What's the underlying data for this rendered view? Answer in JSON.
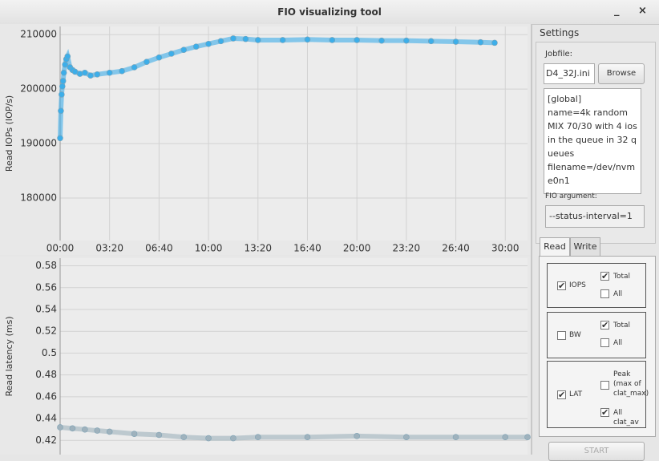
{
  "window": {
    "title": "FIO visualizing tool",
    "controls": [
      "_",
      "×"
    ]
  },
  "chart_data": [
    {
      "type": "line",
      "ylabel": "Read IOPs (IOP/s)",
      "x": [
        0,
        3,
        6,
        9,
        12,
        15,
        20,
        25,
        30,
        40,
        50,
        60,
        80,
        100,
        123,
        150,
        200,
        250,
        300,
        350,
        400,
        450,
        500,
        550,
        600,
        650,
        700,
        750,
        800,
        900,
        1000,
        1100,
        1200,
        1300,
        1400,
        1500,
        1600,
        1700,
        1757
      ],
      "series": [
        {
          "color": "#3daee9",
          "values": [
            191000,
            196000,
            199000,
            200500,
            201500,
            203000,
            204500,
            205500,
            206000,
            204000,
            203500,
            203200,
            202800,
            203000,
            202500,
            202700,
            203000,
            203300,
            204000,
            205000,
            205800,
            206500,
            207200,
            207800,
            208300,
            208800,
            209300,
            209200,
            209000,
            209000,
            209100,
            209000,
            209000,
            208900,
            208900,
            208800,
            208700,
            208600,
            208500
          ]
        }
      ],
      "xlim": [
        0,
        1890
      ],
      "xticks": [
        {
          "value": 0,
          "label": "00:00"
        },
        {
          "value": 200,
          "label": "03:20"
        },
        {
          "value": 400,
          "label": "06:40"
        },
        {
          "value": 600,
          "label": "10:00"
        },
        {
          "value": 800,
          "label": "13:20"
        },
        {
          "value": 1000,
          "label": "16:40"
        },
        {
          "value": 1200,
          "label": "20:00"
        },
        {
          "value": 1400,
          "label": "23:20"
        },
        {
          "value": 1600,
          "label": "26:40"
        },
        {
          "value": 1800,
          "label": "30:00"
        }
      ],
      "ylim": [
        172200,
        211500
      ],
      "yticks": [
        180000,
        190000,
        200000,
        210000
      ],
      "grid": true
    },
    {
      "type": "line",
      "ylabel": "Read latency (ms)",
      "x": [
        0,
        50,
        100,
        150,
        200,
        300,
        400,
        500,
        600,
        700,
        800,
        1000,
        1200,
        1400,
        1600,
        1800,
        1890
      ],
      "series": [
        {
          "color": "#9fb2bd",
          "values": [
            0.432,
            0.431,
            0.43,
            0.429,
            0.428,
            0.426,
            0.425,
            0.423,
            0.422,
            0.422,
            0.423,
            0.423,
            0.424,
            0.423,
            0.423,
            0.423,
            0.423
          ]
        }
      ],
      "xlim": [
        0,
        1890
      ],
      "ylim": [
        0.407,
        0.587
      ],
      "yticks": [
        0.42,
        0.44,
        0.46,
        0.48,
        0.5,
        0.52,
        0.54,
        0.56,
        0.58
      ],
      "grid": true
    }
  ],
  "settings": {
    "title": "Settings",
    "jobfile_label": "Jobfile:",
    "jobfile": "D4_32J.ini",
    "browse": "Browse",
    "job_text": [
      "[global]",
      "name=4k random MIX 70/30 with 4 ios in the queue in 32 queues",
      "filename=/dev/nvme0n1"
    ],
    "argument_label": "FIO argument:",
    "argument": "--status-interval=1",
    "tabs": [
      "Read",
      "Write"
    ],
    "groups": [
      {
        "label": "IOPS",
        "checked": true,
        "options": [
          {
            "label": "Total",
            "checked": true
          },
          {
            "label": "All",
            "checked": false
          }
        ]
      },
      {
        "label": "BW",
        "checked": false,
        "options": [
          {
            "label": "Total",
            "checked": true
          },
          {
            "label": "All",
            "checked": false
          }
        ]
      },
      {
        "label": "LAT",
        "checked": true,
        "options": [
          {
            "label": "Peak (max of clat_max)",
            "checked": false
          },
          {
            "label": "All clat_av",
            "checked": true
          }
        ]
      }
    ],
    "start": "START"
  }
}
